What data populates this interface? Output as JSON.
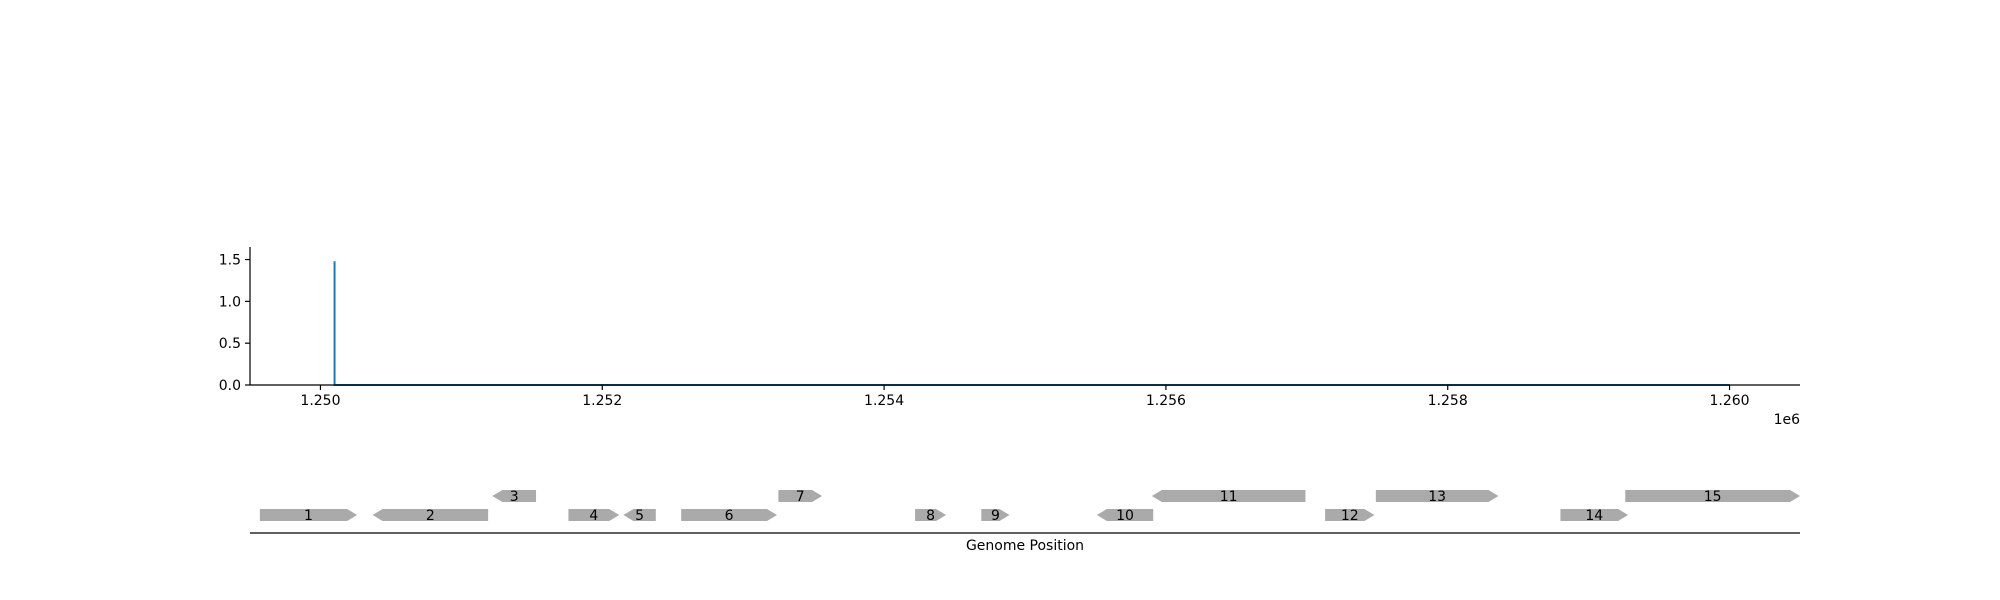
{
  "chart_data": [
    {
      "type": "line",
      "title": "",
      "xlabel": "",
      "ylabel": "",
      "x_offset_label": "1e6",
      "xlim": [
        1.2495,
        1.2605
      ],
      "ylim": [
        0,
        1.65
      ],
      "x_ticks": [
        1.25,
        1.252,
        1.254,
        1.256,
        1.258,
        1.26
      ],
      "x_tick_labels": [
        "1.250",
        "1.252",
        "1.254",
        "1.256",
        "1.258",
        "1.260"
      ],
      "y_ticks": [
        0.0,
        0.5,
        1.0,
        1.5
      ],
      "y_tick_labels": [
        "0.0",
        "0.5",
        "1.0",
        "1.5"
      ],
      "grid": false,
      "series_color": "#1f77b4",
      "series": [
        {
          "x": [
            1.2501,
            1.2501,
            1.2501,
            1.26
          ],
          "y": [
            0.0,
            1.48,
            0.0,
            0.0
          ]
        }
      ]
    },
    {
      "type": "gene_map",
      "xlabel": "Genome Position",
      "gene_color": "#aaaaaa",
      "genes": [
        {
          "label": "1",
          "start": 1.24957,
          "end": 1.25026,
          "strand": 1,
          "row": 0
        },
        {
          "label": "2",
          "start": 1.25037,
          "end": 1.25119,
          "strand": -1,
          "row": 0
        },
        {
          "label": "3",
          "start": 1.25122,
          "end": 1.25153,
          "strand": -1,
          "row": 1
        },
        {
          "label": "4",
          "start": 1.25176,
          "end": 1.25212,
          "strand": 1,
          "row": 0
        },
        {
          "label": "5",
          "start": 1.25215,
          "end": 1.25238,
          "strand": -1,
          "row": 0
        },
        {
          "label": "6",
          "start": 1.25256,
          "end": 1.25324,
          "strand": 1,
          "row": 0
        },
        {
          "label": "7",
          "start": 1.25325,
          "end": 1.25356,
          "strand": 1,
          "row": 1
        },
        {
          "label": "8",
          "start": 1.25422,
          "end": 1.25444,
          "strand": 1,
          "row": 0
        },
        {
          "label": "9",
          "start": 1.25469,
          "end": 1.25489,
          "strand": 1,
          "row": 0
        },
        {
          "label": "10",
          "start": 1.25551,
          "end": 1.25591,
          "strand": -1,
          "row": 0
        },
        {
          "label": "11",
          "start": 1.2559,
          "end": 1.25699,
          "strand": -1,
          "row": 1
        },
        {
          "label": "12",
          "start": 1.25713,
          "end": 1.25748,
          "strand": 1,
          "row": 0
        },
        {
          "label": "13",
          "start": 1.25749,
          "end": 1.25836,
          "strand": 1,
          "row": 1
        },
        {
          "label": "14",
          "start": 1.2588,
          "end": 1.25928,
          "strand": 1,
          "row": 0
        },
        {
          "label": "15",
          "start": 1.25926,
          "end": 1.2605,
          "strand": 1,
          "row": 1
        }
      ]
    }
  ]
}
